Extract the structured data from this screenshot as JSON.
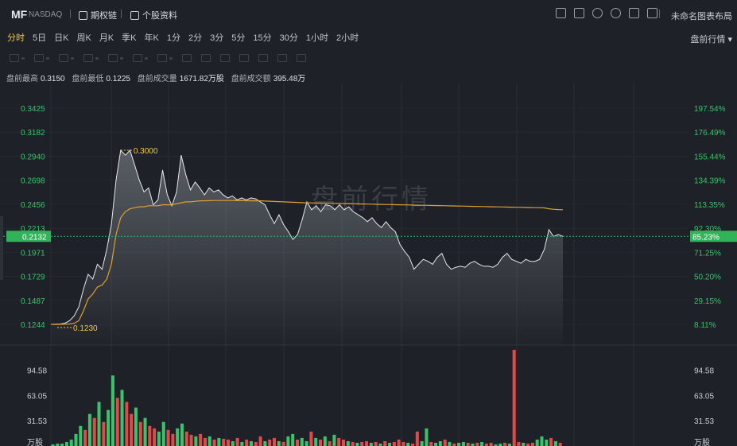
{
  "header": {
    "symbol": "MF",
    "exchange": "NASDAQ",
    "options_link": "期权链",
    "profile_link": "个股资料",
    "layout_label": "未命名图表布局"
  },
  "periods": [
    "分时",
    "5日",
    "日K",
    "周K",
    "月K",
    "季K",
    "年K",
    "1分",
    "2分",
    "3分",
    "5分",
    "15分",
    "30分",
    "1小时",
    "2小时"
  ],
  "active_period": "分时",
  "premarket_menu": "盘前行情",
  "stats": {
    "high_label": "盘前最高",
    "high_value": "0.3150",
    "low_label": "盘前最低",
    "low_value": "0.1225",
    "vol_label": "盘前成交量",
    "vol_value": "1671.82万股",
    "amt_label": "盘前成交额",
    "amt_value": "395.48万"
  },
  "watermark": "盘前行情",
  "colors": {
    "up": "#39c36b",
    "down": "#e04a4a",
    "price": "#e6e8ec",
    "avg": "#e0a030",
    "current": "#2fb45a",
    "marker": "#f2c94c"
  },
  "chart_data": {
    "type": "line",
    "price_axis_left": [
      "0.3425",
      "0.3182",
      "0.2940",
      "0.2698",
      "0.2456",
      "0.2213",
      "0.1971",
      "0.1729",
      "0.1487",
      "0.1244"
    ],
    "pct_axis_right": [
      "197.54%",
      "176.49%",
      "155.44%",
      "134.39%",
      "113.35%",
      "92.30%",
      "71.25%",
      "50.20%",
      "29.15%",
      "8.11%"
    ],
    "ylim": [
      0.1244,
      0.3425
    ],
    "current_price": "0.2132",
    "current_pct": "85.23%",
    "high_marker": "0.3000",
    "low_marker": "0.1230",
    "series": [
      {
        "name": "price",
        "values": [
          0.1244,
          0.1246,
          0.1248,
          0.1255,
          0.128,
          0.133,
          0.142,
          0.16,
          0.175,
          0.17,
          0.185,
          0.18,
          0.2,
          0.225,
          0.27,
          0.3,
          0.295,
          0.3,
          0.285,
          0.27,
          0.258,
          0.262,
          0.245,
          0.25,
          0.28,
          0.255,
          0.244,
          0.258,
          0.295,
          0.275,
          0.26,
          0.268,
          0.262,
          0.255,
          0.262,
          0.258,
          0.26,
          0.255,
          0.252,
          0.254,
          0.25,
          0.252,
          0.25,
          0.252,
          0.251,
          0.248,
          0.245,
          0.235,
          0.226,
          0.235,
          0.225,
          0.218,
          0.21,
          0.215,
          0.23,
          0.248,
          0.24,
          0.244,
          0.238,
          0.245,
          0.244,
          0.24,
          0.245,
          0.24,
          0.243,
          0.238,
          0.235,
          0.232,
          0.228,
          0.232,
          0.226,
          0.222,
          0.228,
          0.222,
          0.218,
          0.205,
          0.198,
          0.192,
          0.18,
          0.185,
          0.19,
          0.188,
          0.185,
          0.192,
          0.196,
          0.185,
          0.18,
          0.182,
          0.183,
          0.182,
          0.186,
          0.188,
          0.185,
          0.183,
          0.183,
          0.182,
          0.185,
          0.192,
          0.196,
          0.19,
          0.188,
          0.186,
          0.19,
          0.188,
          0.188,
          0.19,
          0.2,
          0.22,
          0.213,
          0.215,
          0.2132
        ]
      },
      {
        "name": "avg",
        "values": [
          0.1244,
          0.1244,
          0.1245,
          0.1246,
          0.1248,
          0.1255,
          0.128,
          0.138,
          0.15,
          0.155,
          0.162,
          0.164,
          0.17,
          0.185,
          0.215,
          0.232,
          0.238,
          0.241,
          0.242,
          0.243,
          0.243,
          0.244,
          0.244,
          0.244,
          0.245,
          0.245,
          0.245,
          0.246,
          0.247,
          0.248,
          0.248,
          0.2485,
          0.249,
          0.249,
          0.2492,
          0.2493,
          0.2493,
          0.2493,
          0.2493,
          0.2493,
          0.2492,
          0.2492,
          0.2491,
          0.249,
          0.249,
          0.249,
          0.2488,
          0.2486,
          0.2484,
          0.2482,
          0.248,
          0.2478,
          0.2476,
          0.2474,
          0.2472,
          0.247,
          0.2469,
          0.2468,
          0.2467,
          0.2466,
          0.2465,
          0.2464,
          0.2463,
          0.2462,
          0.2461,
          0.246,
          0.2459,
          0.2458,
          0.2457,
          0.2456,
          0.2455,
          0.2454,
          0.2453,
          0.2452,
          0.2451,
          0.245,
          0.2449,
          0.2448,
          0.2447,
          0.2446,
          0.2445,
          0.2444,
          0.2443,
          0.2442,
          0.2441,
          0.244,
          0.2439,
          0.2438,
          0.2437,
          0.2436,
          0.2435,
          0.2434,
          0.2433,
          0.2432,
          0.2431,
          0.243,
          0.2429,
          0.2428,
          0.2427,
          0.2426,
          0.2425,
          0.2424,
          0.2423,
          0.2422,
          0.2421,
          0.242,
          0.2419,
          0.241,
          0.2405,
          0.2402,
          0.24
        ]
      }
    ],
    "volume_axis_left": [
      "94.58",
      "63.05",
      "31.53",
      "万股"
    ],
    "volume_axis_right": [
      "94.58",
      "63.05",
      "31.53",
      "万股"
    ],
    "volume_ylim": [
      0,
      120
    ],
    "volume": [
      2,
      3,
      3,
      5,
      8,
      15,
      25,
      20,
      40,
      35,
      55,
      30,
      45,
      88,
      60,
      70,
      55,
      40,
      48,
      30,
      35,
      25,
      22,
      18,
      30,
      20,
      15,
      22,
      28,
      18,
      14,
      12,
      15,
      10,
      12,
      8,
      10,
      9,
      8,
      6,
      10,
      5,
      8,
      6,
      5,
      12,
      6,
      8,
      10,
      6,
      5,
      12,
      15,
      8,
      10,
      6,
      18,
      10,
      8,
      12,
      6,
      14,
      10,
      8,
      6,
      5,
      4,
      5,
      6,
      4,
      5,
      3,
      6,
      4,
      5,
      8,
      5,
      4,
      3,
      18,
      6,
      22,
      5,
      4,
      6,
      8,
      5,
      3,
      4,
      5,
      4,
      3,
      4,
      5,
      3,
      4,
      2,
      3,
      4,
      3,
      120,
      5,
      4,
      3,
      4,
      8,
      12,
      8,
      10,
      6,
      4
    ],
    "volume_up": [
      1,
      1,
      1,
      1,
      1,
      1,
      1,
      0,
      1,
      0,
      1,
      0,
      1,
      1,
      0,
      1,
      0,
      0,
      1,
      0,
      1,
      0,
      0,
      1,
      1,
      0,
      0,
      1,
      1,
      0,
      0,
      1,
      0,
      0,
      1,
      0,
      1,
      0,
      0,
      1,
      0,
      1,
      0,
      1,
      0,
      0,
      1,
      0,
      0,
      1,
      0,
      1,
      1,
      0,
      1,
      1,
      0,
      1,
      0,
      1,
      0,
      1,
      0,
      0,
      1,
      0,
      1,
      0,
      0,
      1,
      0,
      1,
      0,
      1,
      0,
      0,
      0,
      1,
      0,
      0,
      1,
      1,
      0,
      1,
      1,
      0,
      1,
      0,
      1,
      1,
      0,
      1,
      0,
      1,
      0,
      0,
      1,
      1,
      0,
      1,
      0,
      0,
      1,
      0,
      0,
      1,
      1,
      1,
      0,
      1,
      0
    ]
  }
}
